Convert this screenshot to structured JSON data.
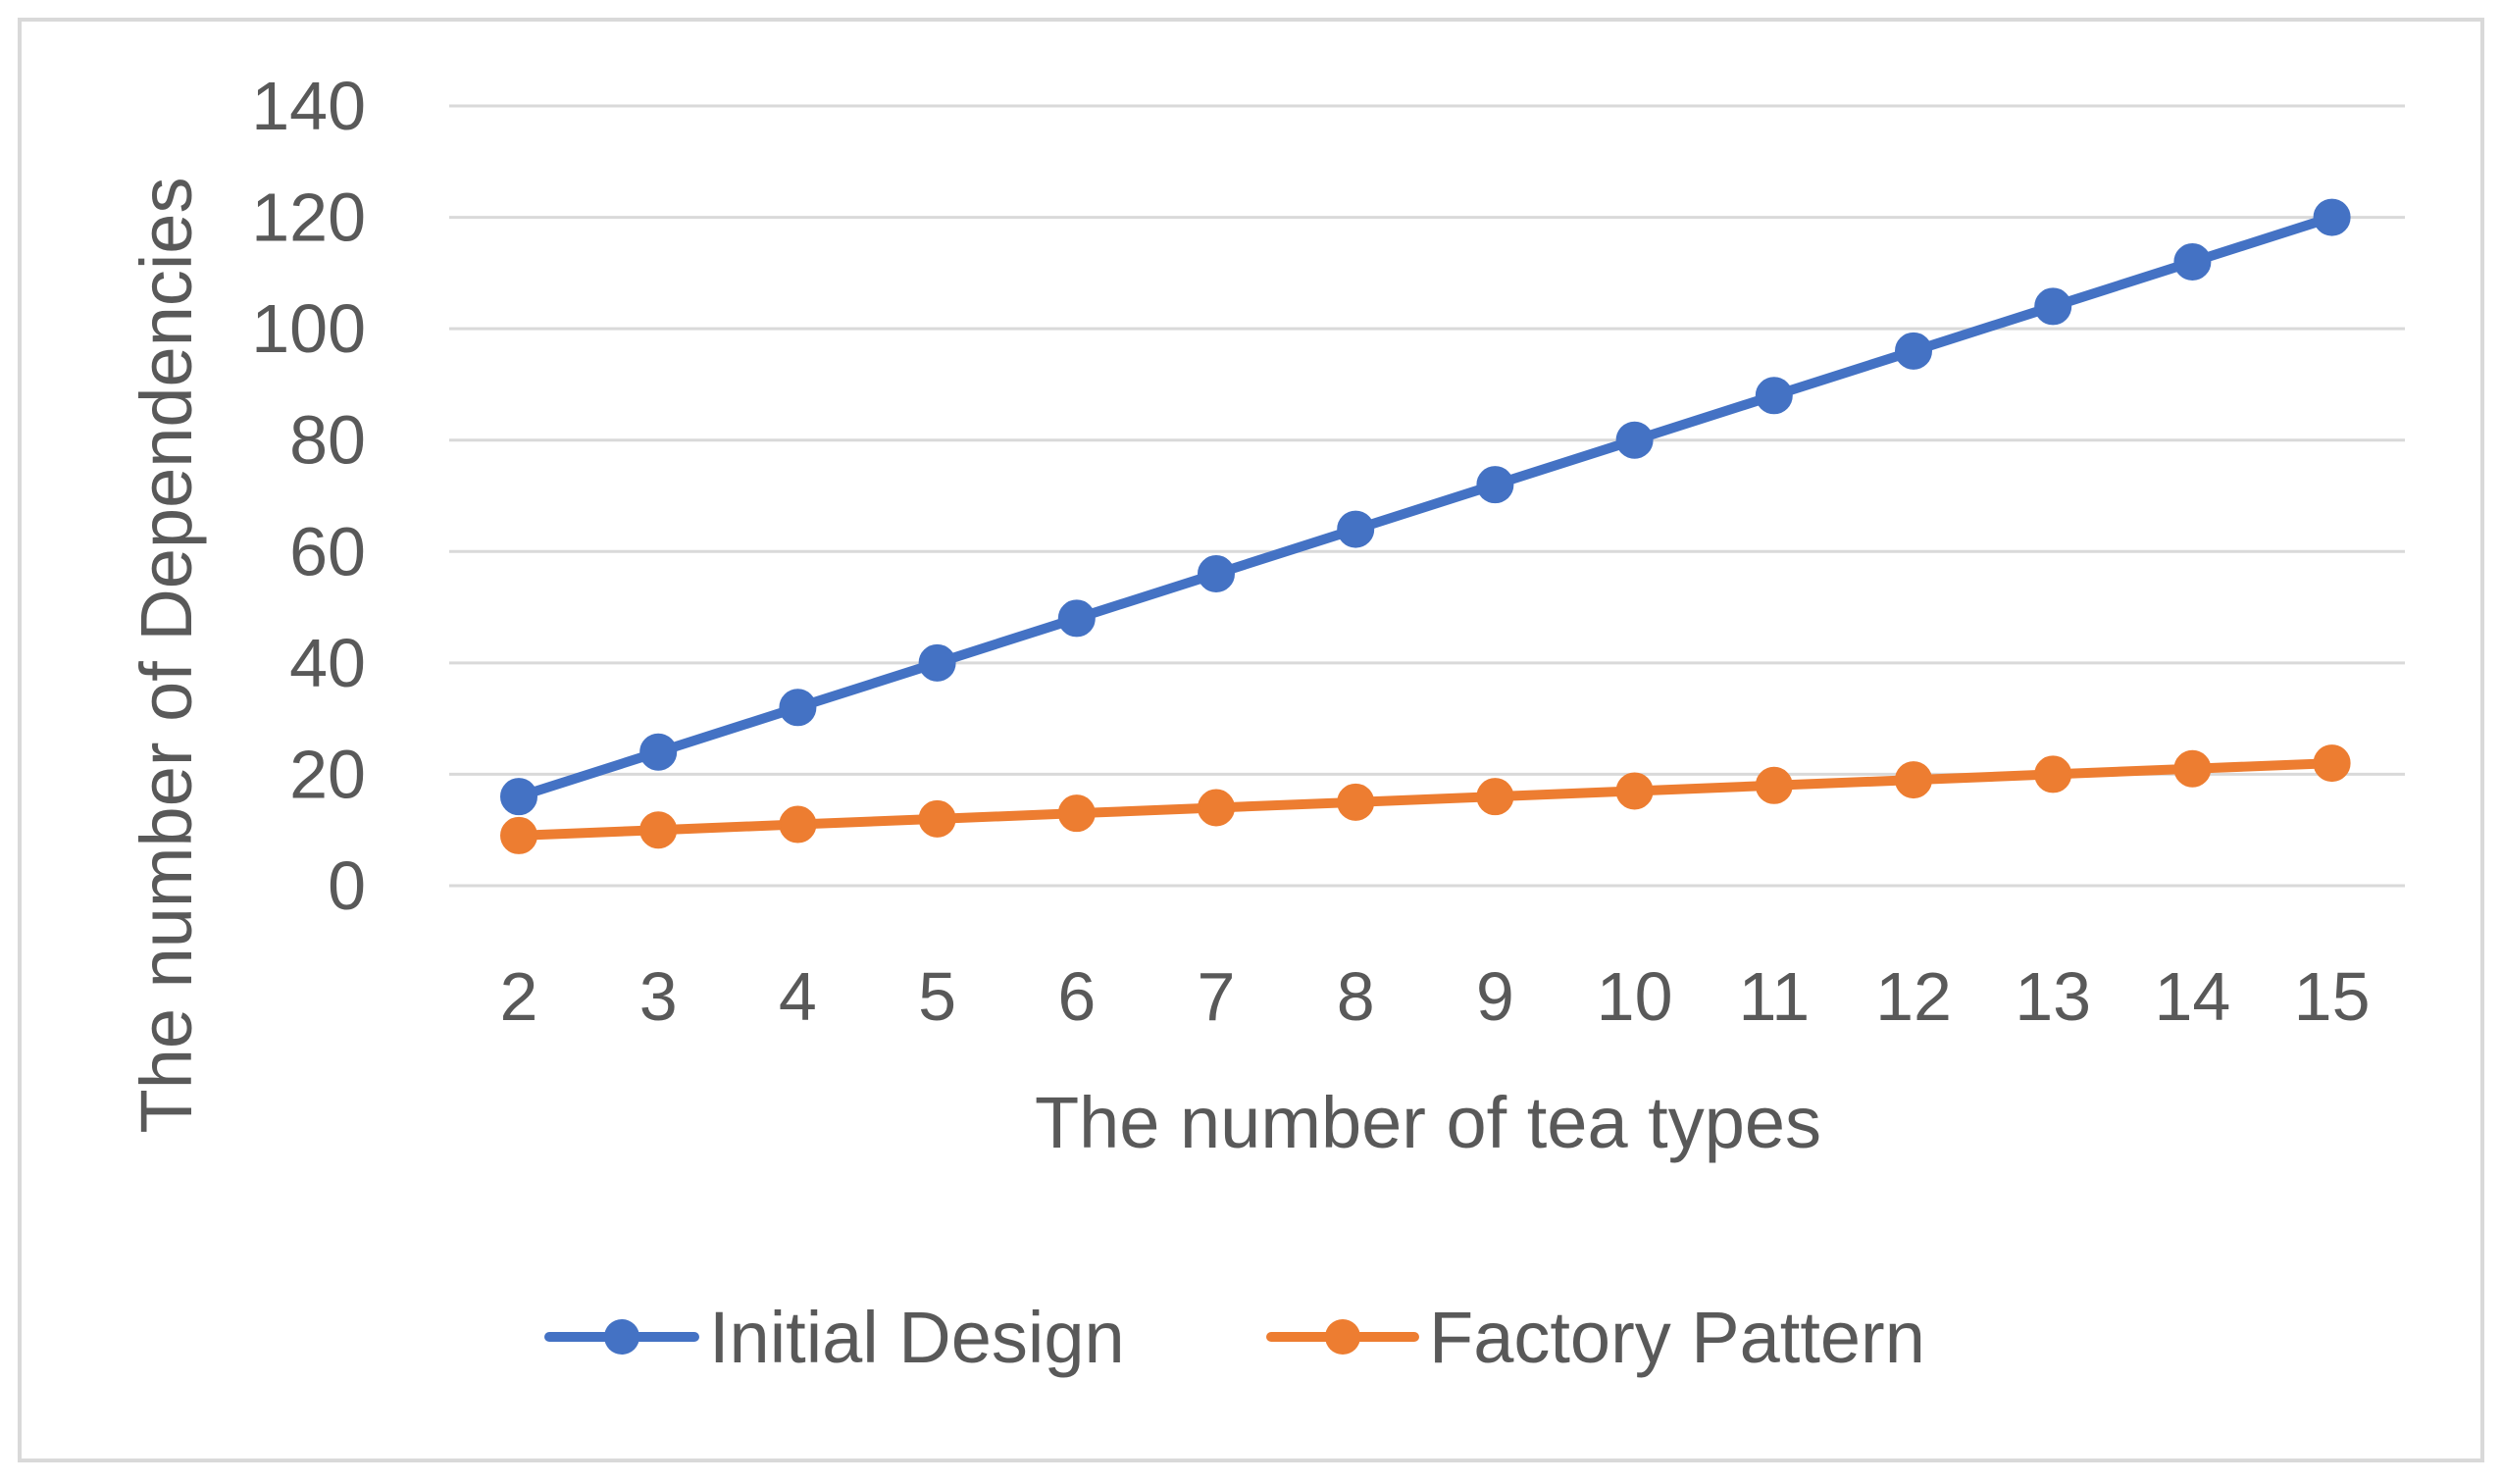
{
  "chart_data": {
    "type": "line",
    "title": "",
    "xlabel": "The number of tea types",
    "ylabel": "The number of Dependencies",
    "categories": [
      "2",
      "3",
      "4",
      "5",
      "6",
      "7",
      "8",
      "9",
      "10",
      "11",
      "12",
      "13",
      "14",
      "15"
    ],
    "ylim": [
      0,
      140
    ],
    "yticks": [
      0,
      20,
      40,
      60,
      80,
      100,
      120,
      140
    ],
    "grid": "horizontal",
    "legend_position": "bottom",
    "series": [
      {
        "name": "Initial Design",
        "color": "#4472C4",
        "values": [
          16,
          24,
          32,
          40,
          48,
          56,
          64,
          72,
          80,
          88,
          96,
          104,
          112,
          120
        ]
      },
      {
        "name": "Factory Pattern",
        "color": "#ED7D31",
        "values": [
          9,
          10,
          11,
          12,
          13,
          14,
          15,
          16,
          17,
          18,
          19,
          20,
          21,
          22
        ]
      }
    ]
  }
}
